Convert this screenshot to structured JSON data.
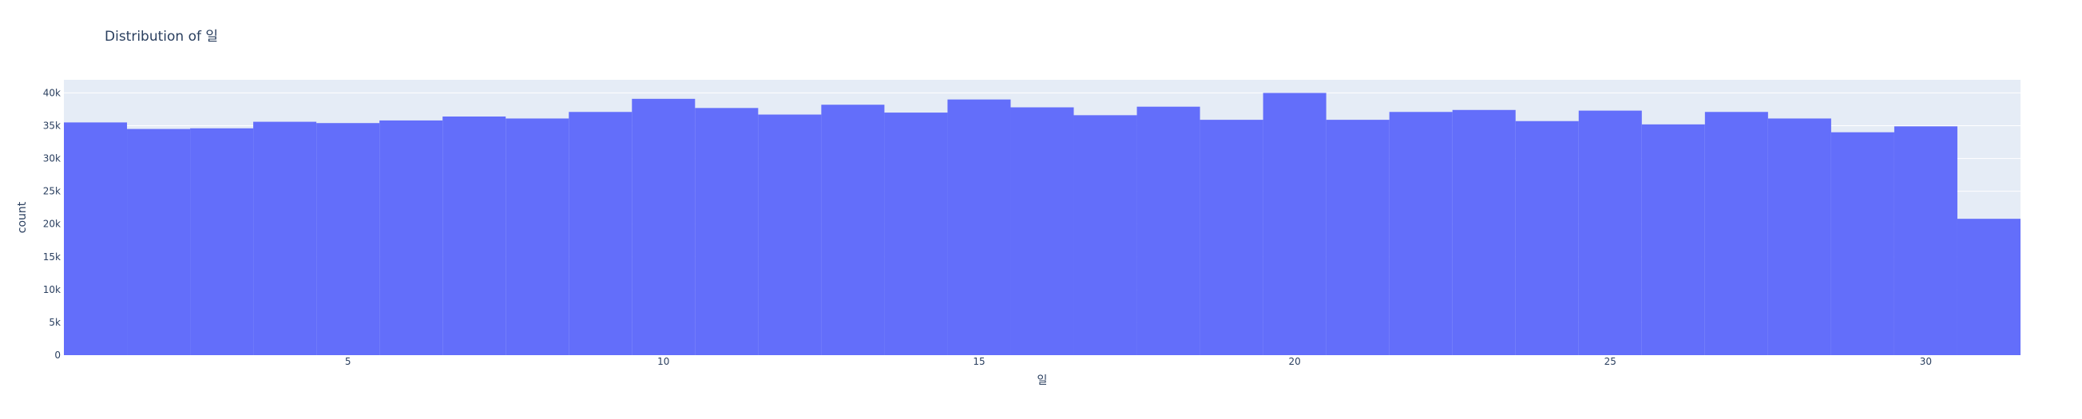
{
  "chart_data": {
    "type": "bar",
    "title": "Distribution of 일",
    "xlabel": "일",
    "ylabel": "count",
    "x": [
      1,
      2,
      3,
      4,
      5,
      6,
      7,
      8,
      9,
      10,
      11,
      12,
      13,
      14,
      15,
      16,
      17,
      18,
      19,
      20,
      21,
      22,
      23,
      24,
      25,
      26,
      27,
      28,
      29,
      30,
      31
    ],
    "values": [
      35500,
      34500,
      34600,
      35600,
      35400,
      35800,
      36400,
      36100,
      37100,
      39100,
      37700,
      36700,
      38200,
      37000,
      39000,
      37800,
      36600,
      37900,
      35900,
      40000,
      35900,
      37100,
      37400,
      35700,
      37300,
      35200,
      37100,
      36100,
      34000,
      34900,
      20800
    ],
    "xlim": [
      0.5,
      31.5
    ],
    "ylim": [
      0,
      42000
    ],
    "xticks": [
      5,
      10,
      15,
      20,
      25,
      30
    ],
    "yticks": [
      0,
      5000,
      10000,
      15000,
      20000,
      25000,
      30000,
      35000,
      40000
    ],
    "ytick_labels": [
      "0",
      "5k",
      "10k",
      "15k",
      "20k",
      "25k",
      "30k",
      "35k",
      "40k"
    ],
    "grid": true,
    "colors": {
      "bar": "#636efa",
      "plot_bg": "#e5ecf6",
      "grid": "#ffffff",
      "text": "#2a3f5f"
    }
  }
}
